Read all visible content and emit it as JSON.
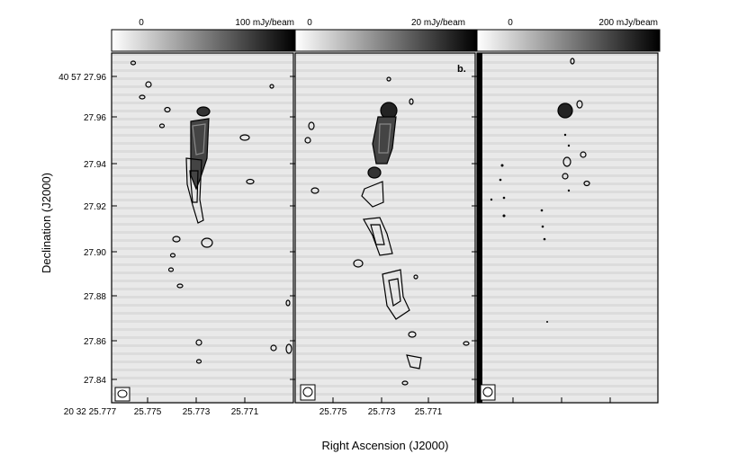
{
  "figure": {
    "y_axis_label": "Declination (J2000)",
    "x_axis_label": "Right Ascension (J2000)",
    "y_ticks": [
      "40 57 27.96",
      "27.96",
      "27.94",
      "27.92",
      "27.90",
      "27.88",
      "27.86",
      "27.84"
    ],
    "x_ticks_panel1": [
      "20 32 25.777",
      "25.775",
      "25.773",
      "25.771"
    ],
    "x_ticks_other": [
      "25.775",
      "25.773",
      "25.771"
    ],
    "panels": [
      {
        "id": "a",
        "label": "",
        "colorbar_min": "0",
        "colorbar_max": "100 mJy/beam"
      },
      {
        "id": "b",
        "label": "b.",
        "colorbar_min": "0",
        "colorbar_max": "20 mJy/beam"
      },
      {
        "id": "c",
        "label": "",
        "colorbar_min": "0",
        "colorbar_max": "200 mJy/beam"
      }
    ],
    "colors": {
      "background": "#ffffff",
      "panel_fill": "#e6e6e6",
      "contour": "#000000"
    }
  }
}
